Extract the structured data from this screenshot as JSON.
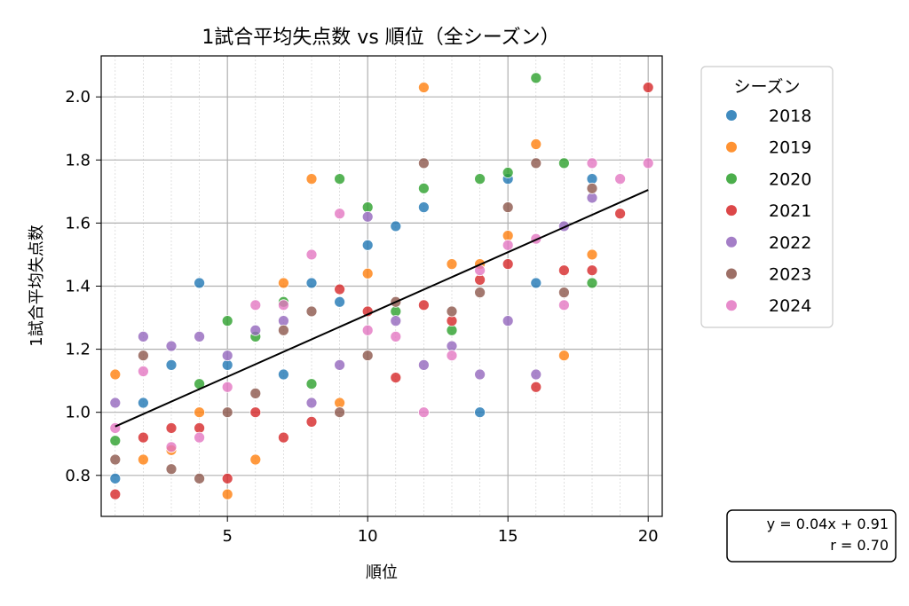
{
  "chart_data": {
    "type": "scatter",
    "title": "1試合平均失点数 vs 順位（全シーズン）",
    "xlabel": "順位",
    "ylabel": "1試合平均失点数",
    "xlim": [
      0.5,
      20.5
    ],
    "ylim": [
      0.67,
      2.13
    ],
    "xticks": [
      5,
      10,
      15,
      20
    ],
    "yticks": [
      0.8,
      1.0,
      1.2,
      1.4,
      1.6,
      1.8,
      2.0
    ],
    "ytick_labels": [
      "0.8",
      "1.0",
      "1.2",
      "1.4",
      "1.6",
      "1.8",
      "2.0"
    ],
    "grid": true,
    "legend": {
      "title": "シーズン",
      "position": "outside-right-top"
    },
    "series": [
      {
        "name": "2018",
        "color": "#1f77b4",
        "points": [
          [
            1,
            0.79
          ],
          [
            2,
            1.03
          ],
          [
            3,
            1.15
          ],
          [
            4,
            1.41
          ],
          [
            5,
            1.15
          ],
          [
            7,
            1.12
          ],
          [
            8,
            1.41
          ],
          [
            9,
            1.35
          ],
          [
            10,
            1.53
          ],
          [
            11,
            1.59
          ],
          [
            12,
            1.65
          ],
          [
            14,
            1.0
          ],
          [
            15,
            1.74
          ],
          [
            16,
            1.41
          ],
          [
            18,
            1.74
          ]
        ]
      },
      {
        "name": "2019",
        "color": "#ff7f0e",
        "points": [
          [
            1,
            1.12
          ],
          [
            2,
            0.85
          ],
          [
            3,
            0.88
          ],
          [
            4,
            1.0
          ],
          [
            5,
            0.74
          ],
          [
            6,
            0.85
          ],
          [
            7,
            1.41
          ],
          [
            8,
            1.74
          ],
          [
            9,
            1.03
          ],
          [
            10,
            1.44
          ],
          [
            12,
            2.03
          ],
          [
            13,
            1.47
          ],
          [
            14,
            1.47
          ],
          [
            15,
            1.56
          ],
          [
            16,
            1.85
          ],
          [
            17,
            1.18
          ],
          [
            18,
            1.5
          ]
        ]
      },
      {
        "name": "2020",
        "color": "#2ca02c",
        "points": [
          [
            1,
            0.91
          ],
          [
            4,
            1.09
          ],
          [
            5,
            1.29
          ],
          [
            6,
            1.24
          ],
          [
            7,
            1.35
          ],
          [
            8,
            1.09
          ],
          [
            9,
            1.74
          ],
          [
            10,
            1.65
          ],
          [
            11,
            1.32
          ],
          [
            12,
            1.71
          ],
          [
            13,
            1.26
          ],
          [
            14,
            1.74
          ],
          [
            15,
            1.76
          ],
          [
            16,
            2.06
          ],
          [
            17,
            1.79
          ],
          [
            18,
            1.41
          ]
        ]
      },
      {
        "name": "2021",
        "color": "#d62728",
        "points": [
          [
            1,
            0.74
          ],
          [
            2,
            0.92
          ],
          [
            3,
            0.95
          ],
          [
            4,
            0.95
          ],
          [
            5,
            0.79
          ],
          [
            6,
            1.0
          ],
          [
            7,
            0.92
          ],
          [
            8,
            0.97
          ],
          [
            9,
            1.39
          ],
          [
            10,
            1.32
          ],
          [
            11,
            1.11
          ],
          [
            12,
            1.34
          ],
          [
            13,
            1.29
          ],
          [
            14,
            1.42
          ],
          [
            15,
            1.47
          ],
          [
            16,
            1.08
          ],
          [
            17,
            1.45
          ],
          [
            18,
            1.45
          ],
          [
            19,
            1.63
          ],
          [
            20,
            2.03
          ]
        ]
      },
      {
        "name": "2022",
        "color": "#9467bd",
        "points": [
          [
            1,
            1.03
          ],
          [
            2,
            1.24
          ],
          [
            3,
            1.21
          ],
          [
            4,
            1.24
          ],
          [
            5,
            1.18
          ],
          [
            6,
            1.26
          ],
          [
            7,
            1.29
          ],
          [
            8,
            1.03
          ],
          [
            9,
            1.15
          ],
          [
            10,
            1.62
          ],
          [
            11,
            1.29
          ],
          [
            12,
            1.15
          ],
          [
            13,
            1.21
          ],
          [
            14,
            1.12
          ],
          [
            15,
            1.29
          ],
          [
            16,
            1.12
          ],
          [
            17,
            1.59
          ],
          [
            18,
            1.68
          ]
        ]
      },
      {
        "name": "2023",
        "color": "#8c564b",
        "points": [
          [
            1,
            0.85
          ],
          [
            2,
            1.18
          ],
          [
            3,
            0.82
          ],
          [
            4,
            0.79
          ],
          [
            5,
            1.0
          ],
          [
            6,
            1.06
          ],
          [
            7,
            1.26
          ],
          [
            8,
            1.32
          ],
          [
            9,
            1.0
          ],
          [
            10,
            1.18
          ],
          [
            11,
            1.35
          ],
          [
            12,
            1.79
          ],
          [
            13,
            1.32
          ],
          [
            14,
            1.38
          ],
          [
            15,
            1.65
          ],
          [
            16,
            1.79
          ],
          [
            17,
            1.38
          ],
          [
            18,
            1.71
          ]
        ]
      },
      {
        "name": "2024",
        "color": "#e377c2",
        "points": [
          [
            1,
            0.95
          ],
          [
            2,
            1.13
          ],
          [
            3,
            0.89
          ],
          [
            4,
            0.92
          ],
          [
            5,
            1.08
          ],
          [
            6,
            1.34
          ],
          [
            7,
            1.34
          ],
          [
            8,
            1.5
          ],
          [
            9,
            1.63
          ],
          [
            10,
            1.26
          ],
          [
            11,
            1.24
          ],
          [
            12,
            1.0
          ],
          [
            13,
            1.18
          ],
          [
            14,
            1.45
          ],
          [
            15,
            1.53
          ],
          [
            16,
            1.55
          ],
          [
            17,
            1.34
          ],
          [
            18,
            1.79
          ],
          [
            19,
            1.74
          ],
          [
            20,
            1.79
          ]
        ]
      }
    ],
    "regression": {
      "slope": 0.04,
      "intercept": 0.91,
      "r": 0.7,
      "line_from": [
        1,
        0.955
      ],
      "line_to": [
        20,
        1.705
      ],
      "color": "#000000"
    },
    "annotation": {
      "line1": "y = 0.04x + 0.91",
      "line2": "r = 0.70"
    }
  }
}
